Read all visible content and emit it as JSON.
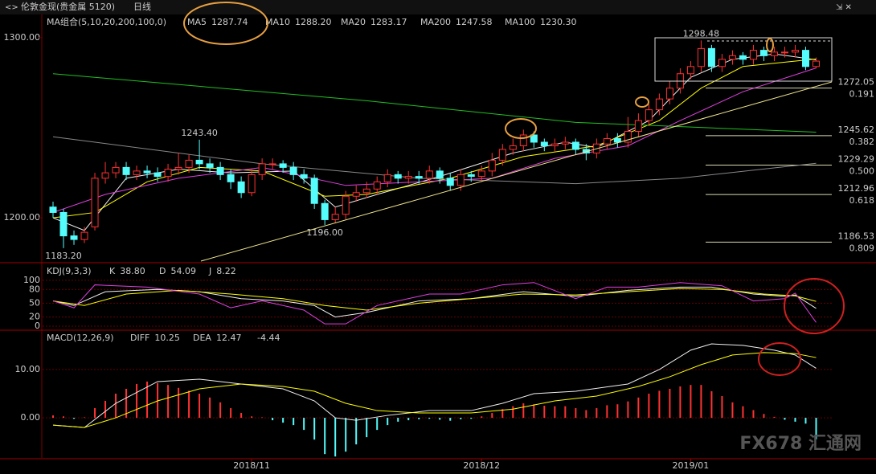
{
  "header": {
    "title": "伦敦金现(贵金属 5120)",
    "period": "日线",
    "watermark": "FX678 汇通网"
  },
  "chart_data": [
    {
      "type": "candlestick",
      "caption": "MA组合(5,10,20,200,100,0)",
      "xlim": [
        -1,
        74.5
      ],
      "xticks": [
        {
          "value": 19,
          "label": "2018/11"
        },
        {
          "value": 41,
          "label": "2018/12"
        },
        {
          "value": 61,
          "label": "2019/01"
        }
      ],
      "ylim": [
        1176,
        1312
      ],
      "yticks": [
        {
          "value": 1200,
          "label": "1200.00"
        },
        {
          "value": 1300,
          "label": "1300.00"
        }
      ],
      "up_color": "#ff3232",
      "down_color": "#54fcfc",
      "open": [
        1206,
        1203,
        1190,
        1188,
        1195,
        1222,
        1225,
        1228,
        1224,
        1226,
        1225,
        1223,
        1227,
        1228,
        1232,
        1230,
        1228,
        1224,
        1220,
        1214,
        1224,
        1230,
        1230,
        1228,
        1224,
        1222,
        1208,
        1199,
        1202,
        1212,
        1214,
        1216,
        1220,
        1224,
        1222,
        1223,
        1222,
        1226,
        1222,
        1218,
        1224,
        1223,
        1226,
        1232,
        1238,
        1240,
        1246,
        1242,
        1240,
        1241,
        1242,
        1238,
        1236,
        1241,
        1244,
        1242,
        1248,
        1254,
        1260,
        1266,
        1272,
        1280,
        1284,
        1294,
        1284,
        1288,
        1290,
        1288,
        1293,
        1290,
        1292,
        1292,
        1293,
        1284
      ],
      "high": [
        1209,
        1205,
        1193,
        1195,
        1225,
        1231,
        1231,
        1231,
        1229,
        1229,
        1228,
        1230,
        1236,
        1235,
        1243.4,
        1233,
        1231,
        1227,
        1223,
        1227,
        1233,
        1233,
        1232,
        1231,
        1227,
        1224,
        1210,
        1206,
        1215,
        1218,
        1220,
        1223,
        1227,
        1226,
        1226,
        1226,
        1229,
        1228,
        1225,
        1227,
        1226,
        1229,
        1236,
        1241,
        1244,
        1249,
        1248,
        1244,
        1244,
        1245,
        1244,
        1241,
        1244,
        1247,
        1247,
        1256,
        1258,
        1263,
        1269,
        1276,
        1283,
        1287,
        1298.48,
        1296,
        1291,
        1293,
        1292,
        1296,
        1295,
        1295,
        1295,
        1296,
        1295,
        1289
      ],
      "low": [
        1200,
        1183.2,
        1185,
        1186,
        1193,
        1219,
        1222,
        1221,
        1221,
        1222,
        1220,
        1220,
        1224,
        1225,
        1227,
        1225,
        1221,
        1216,
        1211,
        1212,
        1221,
        1227,
        1225,
        1221,
        1219,
        1205,
        1196,
        1197,
        1199,
        1209,
        1211,
        1213,
        1217,
        1219,
        1219,
        1219,
        1219,
        1219,
        1215,
        1215,
        1220,
        1220,
        1223,
        1229,
        1235,
        1237,
        1239,
        1237,
        1237,
        1238,
        1235,
        1232,
        1233,
        1238,
        1239,
        1239,
        1245,
        1251,
        1257,
        1263,
        1269,
        1277,
        1281,
        1281,
        1281,
        1285,
        1285,
        1285,
        1287,
        1287,
        1289,
        1289,
        1282,
        1283
      ],
      "close": [
        1203,
        1190,
        1188,
        1192,
        1222,
        1225,
        1228,
        1224,
        1226,
        1225,
        1223,
        1227,
        1228,
        1232,
        1230,
        1228,
        1224,
        1220,
        1214,
        1224,
        1230,
        1230,
        1228,
        1224,
        1222,
        1208,
        1199,
        1202,
        1212,
        1214,
        1216,
        1220,
        1224,
        1222,
        1223,
        1222,
        1226,
        1222,
        1218,
        1224,
        1223,
        1226,
        1232,
        1238,
        1240,
        1246,
        1242,
        1240,
        1241,
        1242,
        1238,
        1236,
        1241,
        1244,
        1242,
        1248,
        1254,
        1260,
        1266,
        1272,
        1280,
        1284,
        1294,
        1284,
        1288,
        1290,
        1288,
        1293,
        1290,
        1292,
        1292,
        1293,
        1284,
        1287
      ],
      "series": [
        {
          "name": "MA5",
          "last_label": "1287.74",
          "color": "#f0f0f0",
          "x": [
            0,
            3,
            7,
            12,
            17,
            23,
            27,
            31,
            37,
            44,
            49,
            52,
            57,
            61,
            65,
            69,
            73
          ],
          "values": [
            1200,
            1193,
            1222,
            1227,
            1225,
            1226,
            1206,
            1213,
            1223,
            1236,
            1242,
            1239,
            1254,
            1278,
            1288,
            1291,
            1287.74
          ]
        },
        {
          "name": "MA10",
          "last_label": "1288.20",
          "color": "#ffff00",
          "x": [
            0,
            4,
            9,
            14,
            20,
            26,
            30,
            38,
            45,
            52,
            58,
            62,
            66,
            73
          ],
          "values": [
            1200,
            1203,
            1220,
            1228,
            1226,
            1212,
            1213,
            1222,
            1234,
            1240,
            1254,
            1272,
            1284,
            1288.2
          ]
        },
        {
          "name": "MA20",
          "last_label": "1283.17",
          "color": "#e040e0",
          "x": [
            0,
            5,
            12,
            20,
            28,
            35,
            42,
            48,
            55,
            60,
            66,
            73
          ],
          "values": [
            1203,
            1213,
            1222,
            1228,
            1218,
            1220,
            1222,
            1233,
            1240,
            1254,
            1270,
            1283.17
          ]
        },
        {
          "name": "MA200",
          "last_label": "1247.58",
          "color": "#20c020",
          "x": [
            0,
            30,
            50,
            73
          ],
          "values": [
            1280,
            1265,
            1253,
            1247.58
          ]
        },
        {
          "name": "MA100",
          "last_label": "1230.30",
          "color": "#888888",
          "x": [
            0,
            20,
            35,
            50,
            60,
            73
          ],
          "values": [
            1245,
            1230,
            1222,
            1219,
            1222,
            1230.3
          ]
        }
      ],
      "annotations": [
        {
          "text": "1298.48",
          "x": 62,
          "y": 1298.48,
          "anchor": "above",
          "color": "#ff4040"
        },
        {
          "text": "1243.40",
          "x": 14,
          "y": 1243.4,
          "anchor": "above",
          "color": "#ff4040"
        },
        {
          "text": "1196.00",
          "x": 26,
          "y": 1196,
          "anchor": "below",
          "color": "#54fcfc"
        },
        {
          "text": "1183.20",
          "x": 1,
          "y": 1183.2,
          "anchor": "below",
          "color": "#54fcfc"
        }
      ],
      "fib_levels": [
        {
          "price": 1272.05,
          "ratio": "0.191"
        },
        {
          "price": 1245.62,
          "ratio": "0.382"
        },
        {
          "price": 1229.29,
          "ratio": "0.500"
        },
        {
          "price": 1212.96,
          "ratio": "0.618"
        },
        {
          "price": 1186.53,
          "ratio": "0.809"
        }
      ]
    },
    {
      "type": "line",
      "caption": "KDJ(9,3,3)",
      "xlim": [
        -1,
        74.5
      ],
      "ylim": [
        -7,
        133
      ],
      "yticks": [
        0,
        20,
        50,
        80,
        100
      ],
      "grid": true,
      "series": [
        {
          "name": "K",
          "last_label": "38.80",
          "color": "#f0f0f0",
          "x": [
            0,
            2,
            5,
            10,
            14,
            18,
            22,
            25,
            27,
            30,
            35,
            40,
            45,
            50,
            55,
            60,
            63,
            67,
            70,
            71,
            73
          ],
          "values": [
            55,
            45,
            75,
            80,
            75,
            60,
            55,
            45,
            20,
            30,
            55,
            60,
            75,
            65,
            78,
            85,
            85,
            70,
            65,
            68,
            38.8
          ]
        },
        {
          "name": "D",
          "last_label": "54.09",
          "color": "#ffff00",
          "x": [
            0,
            3,
            7,
            12,
            17,
            22,
            26,
            30,
            35,
            40,
            45,
            50,
            55,
            60,
            64,
            68,
            71,
            73
          ],
          "values": [
            55,
            45,
            70,
            78,
            70,
            60,
            45,
            35,
            50,
            60,
            70,
            68,
            75,
            82,
            80,
            70,
            66,
            54.09
          ]
        },
        {
          "name": "J",
          "last_label": "8.22",
          "color": "#e040e0",
          "x": [
            0,
            2,
            4,
            9,
            14,
            17,
            20,
            24,
            26,
            28,
            31,
            36,
            39,
            43,
            46,
            50,
            53,
            56,
            60,
            64,
            67,
            70,
            71,
            72,
            73
          ],
          "values": [
            55,
            40,
            90,
            85,
            70,
            40,
            55,
            35,
            5,
            5,
            45,
            70,
            70,
            90,
            95,
            60,
            85,
            85,
            95,
            88,
            55,
            60,
            72,
            40,
            8.22
          ]
        }
      ]
    },
    {
      "type": "macd",
      "caption": "MACD(12,26,9)",
      "xlim": [
        -1,
        74.5
      ],
      "ylim": [
        -8.3,
        17.8
      ],
      "yticks": [
        {
          "value": 0,
          "label": "0.00"
        },
        {
          "value": 10,
          "label": "10.00"
        }
      ],
      "grid": true,
      "up_color": "#ff3232",
      "down_color": "#54fcfc",
      "histogram": {
        "last_label": "-4.44",
        "values": [
          0.5,
          0.3,
          -0.2,
          0.1,
          2,
          3.5,
          5,
          6,
          7,
          7.5,
          7.2,
          6.8,
          6.2,
          5.6,
          5,
          4.2,
          3.2,
          2,
          1,
          0.3,
          0.1,
          -0.5,
          -1,
          -1.5,
          -2.5,
          -4.5,
          -7.5,
          -8,
          -7,
          -5.5,
          -4,
          -2.5,
          -1.5,
          -0.8,
          -0.5,
          -0.3,
          -0.2,
          -0.4,
          -0.6,
          -0.3,
          -0.2,
          0.3,
          1,
          1.8,
          2.4,
          3,
          2.8,
          2.5,
          2.4,
          2.4,
          2,
          1.6,
          2,
          2.6,
          2.8,
          3.4,
          4.2,
          5,
          5.6,
          6,
          6.5,
          6.8,
          6.8,
          5.5,
          4.5,
          3.2,
          2.4,
          1.6,
          0.8,
          0.2,
          -0.4,
          -0.8,
          -1.2,
          -4.44
        ]
      },
      "series": [
        {
          "name": "DIFF",
          "last_label": "10.25",
          "color": "#f0f0f0",
          "x": [
            0,
            3,
            6,
            10,
            14,
            18,
            22,
            25,
            27,
            29,
            32,
            36,
            40,
            43,
            46,
            50,
            55,
            58,
            61,
            63,
            66,
            69,
            71,
            73
          ],
          "values": [
            -1.5,
            -2,
            3,
            7.5,
            8,
            7,
            6,
            3.5,
            0,
            -0.5,
            0.5,
            1.5,
            1.5,
            3,
            5,
            5.5,
            7,
            10,
            14,
            15.3,
            15,
            14,
            13,
            10.25
          ]
        },
        {
          "name": "DEA",
          "last_label": "12.47",
          "color": "#ffff00",
          "x": [
            0,
            3,
            6,
            10,
            14,
            18,
            22,
            25,
            28,
            31,
            35,
            40,
            44,
            48,
            52,
            56,
            59,
            62,
            65,
            68,
            71,
            73
          ],
          "values": [
            -1.5,
            -2,
            0,
            3.5,
            6,
            7,
            6.5,
            5.5,
            3,
            1.5,
            1,
            1,
            1.8,
            3.5,
            4.5,
            6.5,
            8.5,
            11,
            13,
            13.5,
            13.3,
            12.47
          ]
        }
      ]
    }
  ]
}
